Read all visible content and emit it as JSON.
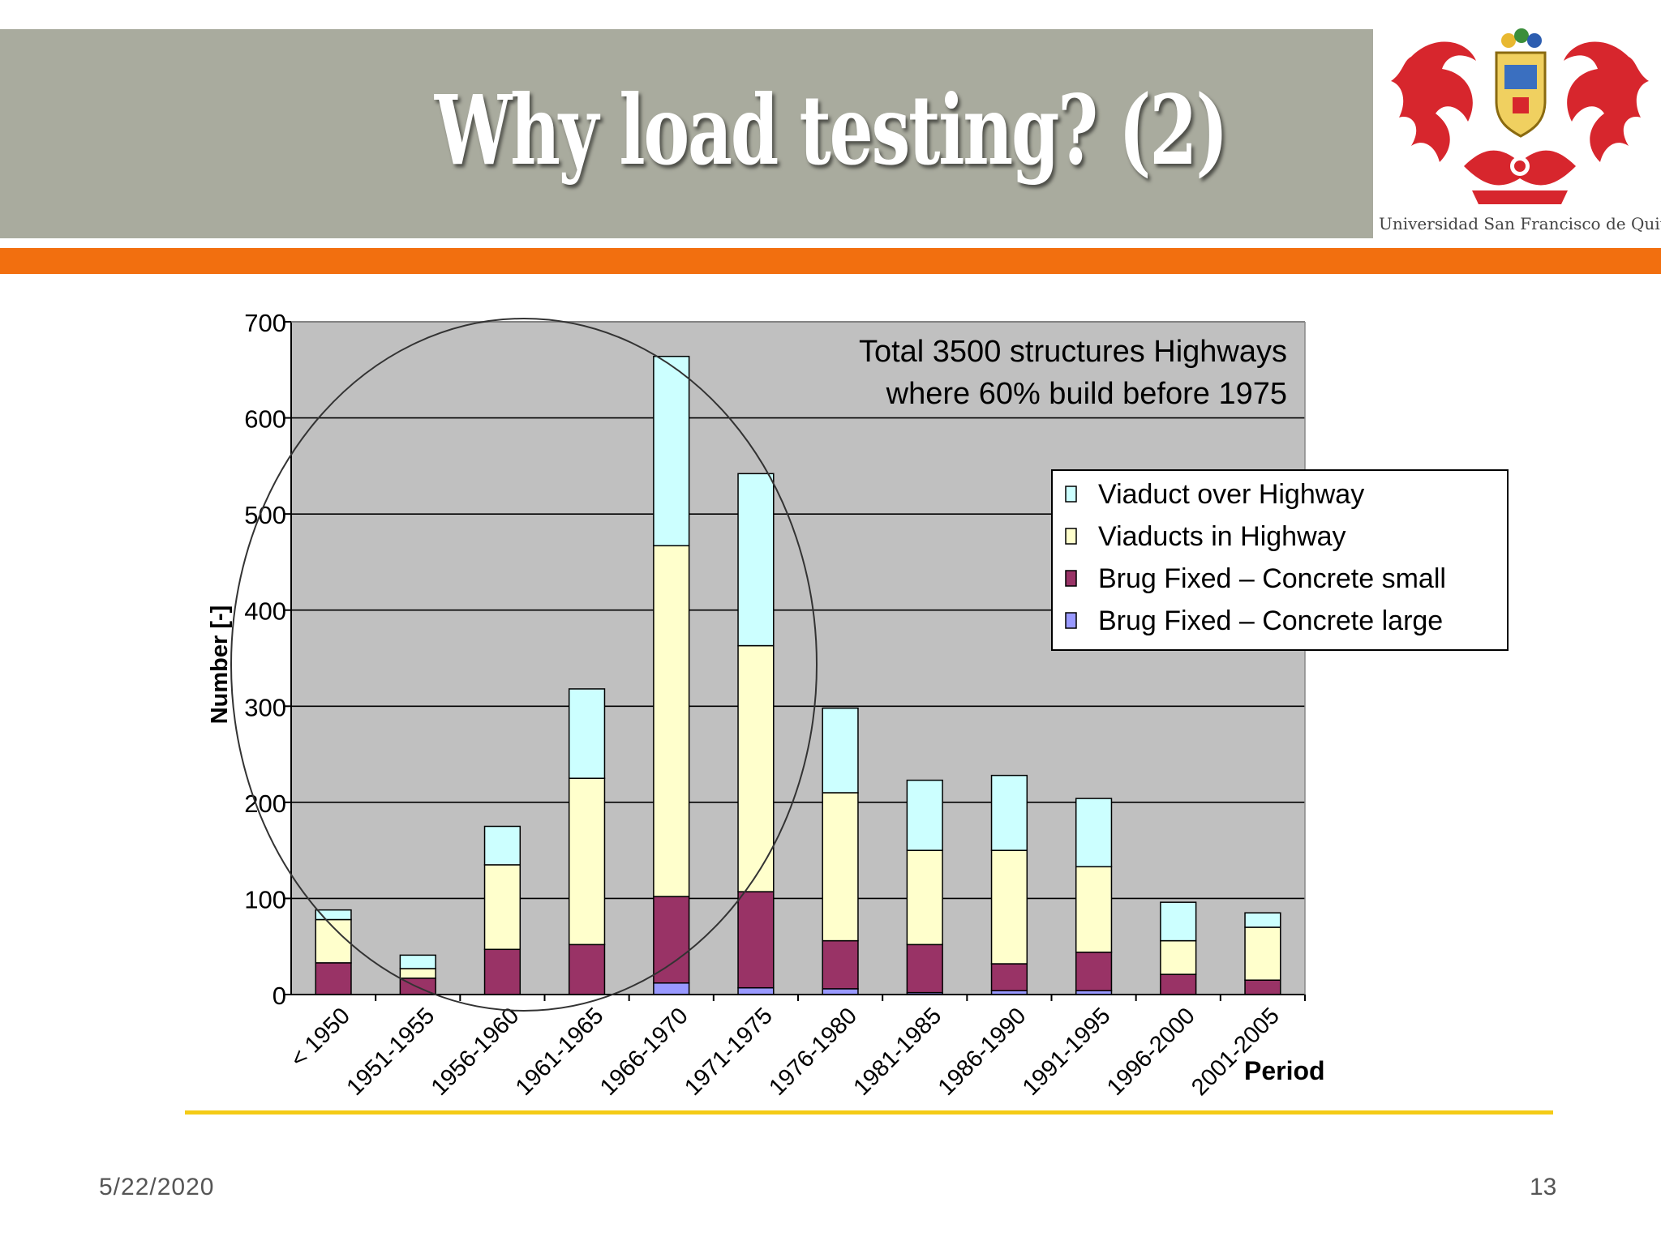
{
  "slide": {
    "title": "Why load testing? (2)",
    "date": "5/22/2020",
    "page_number": "13",
    "logo_text": "Universidad San Francisco de Quito"
  },
  "colors": {
    "title_bar": "#a9ab9e",
    "accent_orange": "#f26f0f",
    "footer_line": "#f4cb17",
    "plot_bg": "#c0c0c0",
    "viaduct_over": "#ccffff",
    "viaducts_in": "#ffffcc",
    "concrete_small": "#993366",
    "concrete_large": "#9999ff"
  },
  "chart_data": {
    "type": "bar",
    "stacked": true,
    "title": "",
    "annotation": [
      "Total 3500 structures Highways",
      "where 60% build before 1975"
    ],
    "xlabel": "Period",
    "ylabel": "Number [-]",
    "ylim": [
      0,
      700
    ],
    "yticks": [
      0,
      100,
      200,
      300,
      400,
      500,
      600,
      700
    ],
    "grid": true,
    "legend_position": "right",
    "categories": [
      "< 1950",
      "1951-1955",
      "1956-1960",
      "1961-1965",
      "1966-1970",
      "1971-1975",
      "1976-1980",
      "1981-1985",
      "1986-1990",
      "1991-1995",
      "1996-2000",
      "2001-2005"
    ],
    "series": [
      {
        "name": "Brug Fixed – Concrete large",
        "color": "#9999ff",
        "values": [
          0,
          0,
          0,
          0,
          12,
          7,
          6,
          2,
          4,
          4,
          0,
          0
        ]
      },
      {
        "name": "Brug Fixed – Concrete small",
        "color": "#993366",
        "values": [
          33,
          17,
          47,
          52,
          90,
          100,
          50,
          50,
          28,
          40,
          21,
          15
        ]
      },
      {
        "name": "Viaducts in Highway",
        "color": "#ffffcc",
        "values": [
          45,
          10,
          88,
          173,
          365,
          256,
          154,
          98,
          118,
          89,
          35,
          55
        ]
      },
      {
        "name": "Viaduct over Highway",
        "color": "#ccffff",
        "values": [
          10,
          14,
          40,
          93,
          197,
          179,
          88,
          73,
          78,
          71,
          40,
          15
        ]
      }
    ],
    "legend_order": [
      "Viaduct over Highway",
      "Viaducts in Highway",
      "Brug Fixed – Concrete small",
      "Brug Fixed – Concrete large"
    ]
  }
}
